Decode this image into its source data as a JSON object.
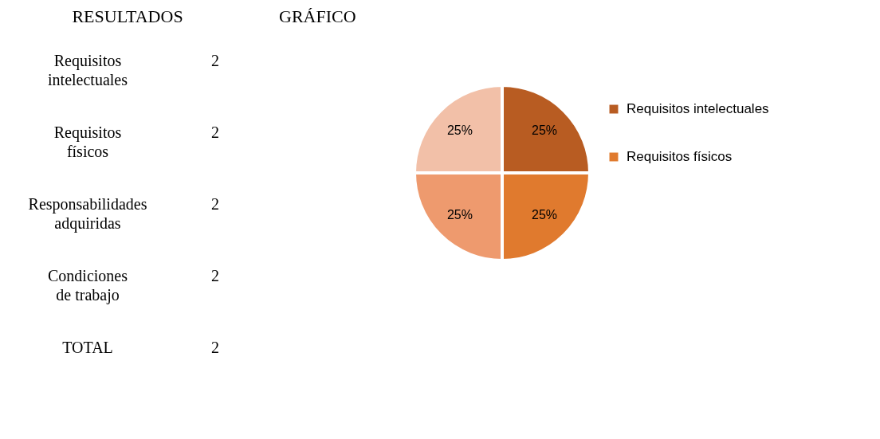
{
  "chart_data": [
    {
      "type": "other",
      "title": "RESULTADOS",
      "annotations": [
        "Requisitos intelectuales",
        "2",
        "Requisitos físicos",
        "2",
        "Responsabilidades adquiridas",
        "2",
        "Condiciones de trabajo",
        "2",
        "TOTAL",
        "2"
      ]
    },
    {
      "type": "pie",
      "title": "GRÁFICO",
      "categories": [
        "Requisitos intelectuales",
        "Requisitos físicos",
        null,
        null
      ],
      "values": [
        25,
        25,
        25,
        25
      ],
      "value_labels": [
        "25%",
        "25%",
        "25%",
        "25%"
      ],
      "colors": [
        "#b85c22",
        "#e07a2e",
        "#ee9a6e",
        "#f2c0a8"
      ],
      "legend": "right"
    }
  ]
}
